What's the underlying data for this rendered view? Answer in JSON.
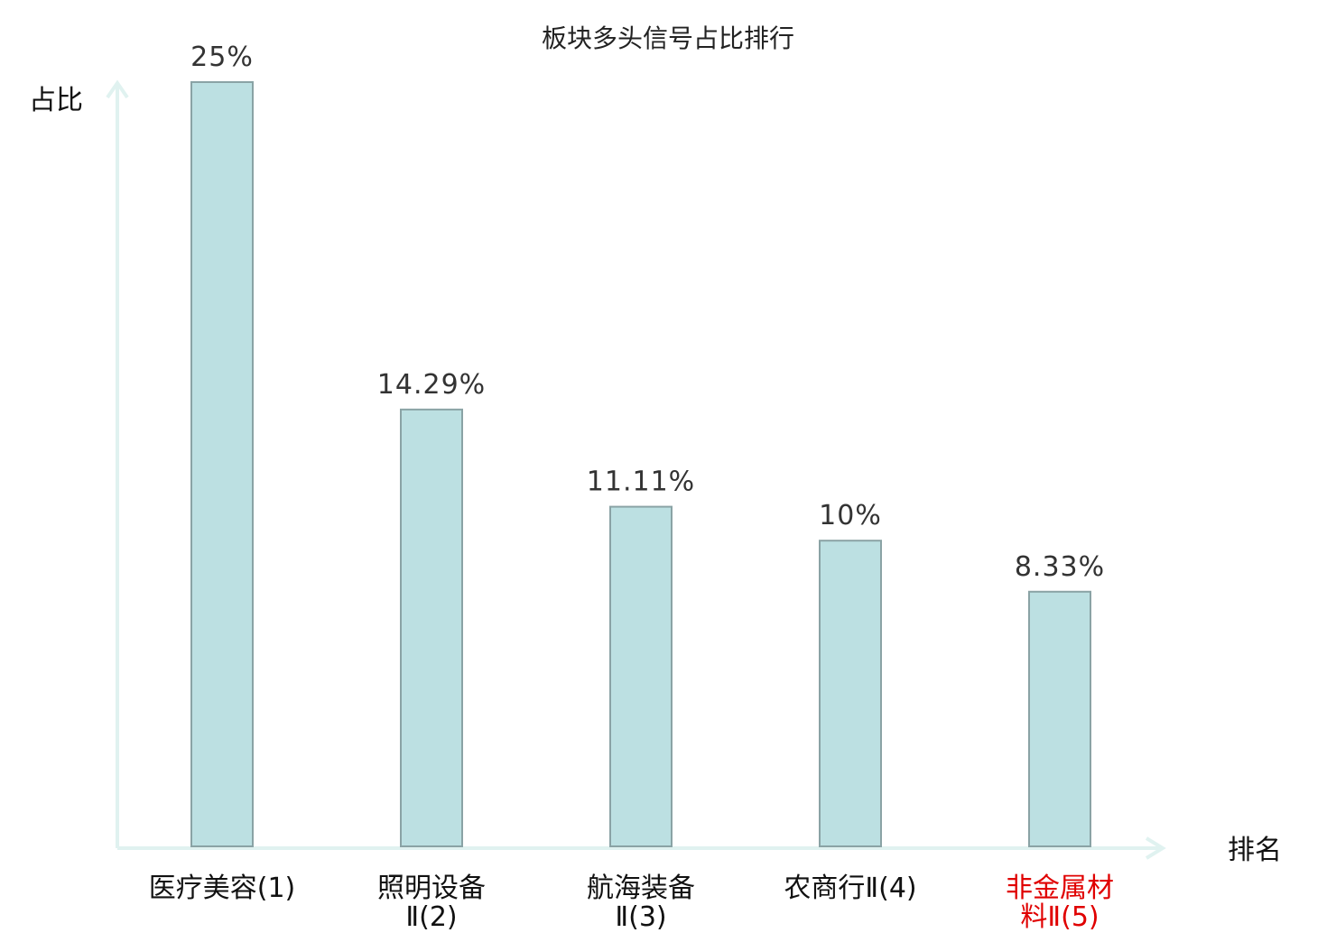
{
  "chart_data": {
    "type": "bar",
    "title": "板块多头信号占比排行",
    "ylabel": "占比",
    "xlabel": "排名",
    "ylim": [
      0,
      25
    ],
    "grid": false,
    "legend": "none",
    "categories": [
      {
        "line1": "医疗美容",
        "line2": "(1)",
        "inline": true,
        "highlight": false
      },
      {
        "line1": "照明设备",
        "line2": "Ⅱ(2)",
        "inline": false,
        "highlight": false
      },
      {
        "line1": "航海装备",
        "line2": "Ⅱ(3)",
        "inline": false,
        "highlight": false
      },
      {
        "line1": "农商行",
        "line2": "Ⅱ(4)",
        "inline": true,
        "highlight": false
      },
      {
        "line1": "非金属材",
        "line2": "料Ⅱ(5)",
        "inline": false,
        "highlight": true
      }
    ],
    "values": [
      25,
      14.29,
      11.11,
      10,
      8.33
    ],
    "value_labels": [
      "25%",
      "14.29%",
      "11.11%",
      "10%",
      "8.33%"
    ]
  },
  "colors": {
    "bar_fill": "#bce0e2",
    "bar_stroke": "#8aa3a5",
    "axis": "#e0f2f0",
    "text": "#111111",
    "value_text": "#333333",
    "highlight": "#e00000"
  }
}
